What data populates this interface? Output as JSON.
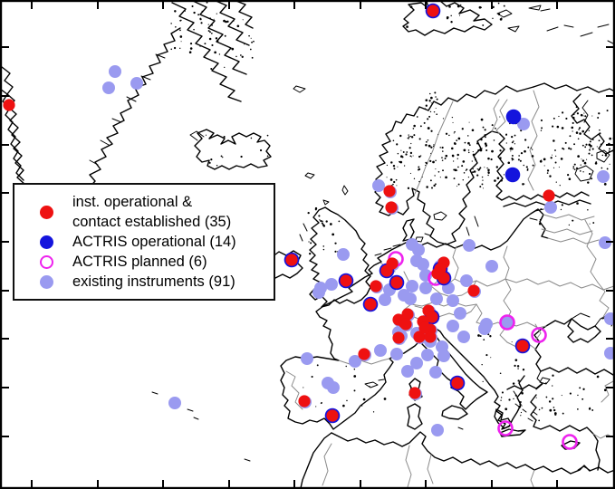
{
  "figure": {
    "type": "station-map",
    "background": "#ffffff",
    "frame_color": "#000000",
    "coast_color": "#000000",
    "border_color": "#8a8a8a"
  },
  "legend": {
    "items": [
      {
        "id": "operational_contact",
        "marker": "filled",
        "color": "#ee1111",
        "lines": [
          "inst. operational &",
          "contact established (35)"
        ],
        "count": 35
      },
      {
        "id": "actris_operational",
        "marker": "filled",
        "color": "#1414dd",
        "lines": [
          "ACTRIS operational (14)"
        ],
        "count": 14
      },
      {
        "id": "actris_planned",
        "marker": "open",
        "color": "#ee22ee",
        "lines": [
          "ACTRIS planned (6)"
        ],
        "count": 6
      },
      {
        "id": "existing",
        "marker": "filled",
        "color": "#9a9af0",
        "lines": [
          "existing instruments (91)"
        ],
        "count": 91
      }
    ]
  },
  "markers": {
    "existing": [
      [
        127,
        79
      ],
      [
        120,
        97
      ],
      [
        151,
        92
      ],
      [
        193,
        445
      ],
      [
        418,
        205
      ],
      [
        578,
        137
      ],
      [
        608,
        229
      ],
      [
        666,
        195
      ],
      [
        668,
        268
      ],
      [
        674,
        352
      ],
      [
        674,
        390
      ],
      [
        379,
        281
      ],
      [
        354,
        318
      ],
      [
        366,
        314
      ],
      [
        462,
        276
      ],
      [
        460,
        288
      ],
      [
        453,
        330
      ],
      [
        467,
        292
      ],
      [
        518,
        271
      ],
      [
        543,
        294
      ],
      [
        515,
        310
      ],
      [
        537,
        358
      ],
      [
        440,
        367
      ],
      [
        460,
        368
      ],
      [
        443,
        371
      ],
      [
        462,
        370
      ],
      [
        475,
        377
      ],
      [
        352,
        323
      ],
      [
        420,
        387
      ],
      [
        392,
        399
      ],
      [
        339,
        396
      ],
      [
        362,
        423
      ],
      [
        368,
        428
      ],
      [
        488,
        383
      ],
      [
        490,
        393
      ],
      [
        481,
        411
      ],
      [
        483,
        475
      ],
      [
        535,
        363
      ],
      [
        560,
        356
      ],
      [
        455,
        270
      ],
      [
        431,
        212
      ],
      [
        433,
        230
      ],
      [
        323,
        288
      ],
      [
        383,
        311
      ],
      [
        410,
        337
      ],
      [
        416,
        317
      ],
      [
        428,
        300
      ],
      [
        434,
        292
      ],
      [
        439,
        313
      ],
      [
        489,
        291
      ],
      [
        487,
        298
      ],
      [
        484,
        302
      ],
      [
        491,
        308
      ],
      [
        486,
        294
      ],
      [
        524,
        322
      ],
      [
        441,
        354
      ],
      [
        447,
        357
      ],
      [
        451,
        348
      ],
      [
        474,
        344
      ],
      [
        478,
        351
      ],
      [
        476,
        365
      ],
      [
        468,
        356
      ],
      [
        464,
        373
      ],
      [
        476,
        373
      ],
      [
        449,
        359
      ],
      [
        441,
        374
      ],
      [
        403,
        392
      ],
      [
        337,
        444
      ],
      [
        368,
        460
      ],
      [
        459,
        435
      ],
      [
        506,
        424
      ],
      [
        578,
        383
      ],
      [
        567,
        130
      ],
      [
        566,
        194
      ],
      [
        479,
        13
      ],
      [
        430,
        320
      ],
      [
        425,
        331
      ],
      [
        470,
        318
      ],
      [
        482,
        330
      ],
      [
        495,
        318
      ],
      [
        500,
        332
      ],
      [
        508,
        346
      ],
      [
        470,
        304
      ],
      [
        455,
        316
      ],
      [
        446,
        326
      ],
      [
        472,
        392
      ],
      [
        460,
        401
      ],
      [
        450,
        410
      ],
      [
        438,
        391
      ],
      [
        500,
        360
      ],
      [
        512,
        372
      ]
    ],
    "actris_planned": [
      [
        437,
        286
      ],
      [
        481,
        307
      ],
      [
        560,
        356
      ],
      [
        595,
        370
      ],
      [
        558,
        473
      ],
      [
        629,
        488
      ]
    ],
    "actris_operational": [
      [
        567,
        129
      ],
      [
        566,
        193
      ],
      [
        478,
        12
      ],
      [
        322,
        287
      ],
      [
        382,
        310
      ],
      [
        409,
        336
      ],
      [
        427,
        299
      ],
      [
        438,
        312
      ],
      [
        486,
        297
      ],
      [
        490,
        307
      ],
      [
        477,
        350
      ],
      [
        367,
        459
      ],
      [
        505,
        423
      ],
      [
        577,
        382
      ]
    ],
    "operational_contact": [
      [
        10,
        116
      ],
      [
        478,
        12
      ],
      [
        430,
        211
      ],
      [
        432,
        229
      ],
      [
        606,
        216
      ],
      [
        322,
        287
      ],
      [
        382,
        310
      ],
      [
        409,
        336
      ],
      [
        415,
        316
      ],
      [
        427,
        299
      ],
      [
        433,
        291
      ],
      [
        438,
        312
      ],
      [
        490,
        290
      ],
      [
        486,
        297
      ],
      [
        490,
        307
      ],
      [
        483,
        302
      ],
      [
        523,
        321
      ],
      [
        440,
        353
      ],
      [
        446,
        356
      ],
      [
        450,
        347
      ],
      [
        473,
        343
      ],
      [
        477,
        350
      ],
      [
        475,
        364
      ],
      [
        467,
        355
      ],
      [
        463,
        372
      ],
      [
        475,
        372
      ],
      [
        448,
        358
      ],
      [
        440,
        373
      ],
      [
        402,
        391
      ],
      [
        336,
        443
      ],
      [
        367,
        459
      ],
      [
        458,
        434
      ],
      [
        505,
        423
      ],
      [
        577,
        382
      ],
      [
        469,
        362
      ]
    ]
  }
}
